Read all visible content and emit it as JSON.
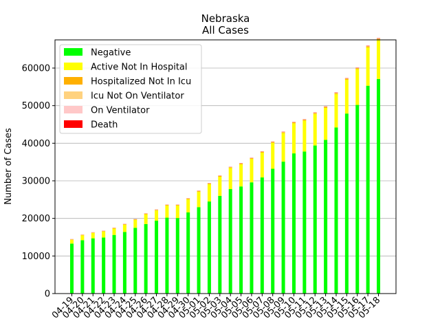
{
  "chart_data": {
    "type": "bar",
    "stacked": true,
    "title": "Nebraska",
    "subtitle": "All Cases",
    "xlabel": "",
    "ylabel": "Number of Cases",
    "ylim": [
      0,
      67500
    ],
    "yticks": [
      0,
      10000,
      20000,
      30000,
      40000,
      50000,
      60000
    ],
    "ytick_labels": [
      "0",
      "10000",
      "20000",
      "30000",
      "40000",
      "50000",
      "60000"
    ],
    "grid": "horizontal",
    "legend_position": "top-left",
    "categories": [
      "04-19",
      "04-20",
      "04-21",
      "04-22",
      "04-23",
      "04-24",
      "04-25",
      "04-26",
      "04-27",
      "04-28",
      "04-29",
      "04-30",
      "05-01",
      "05-02",
      "05-03",
      "05-04",
      "05-05",
      "05-06",
      "05-07",
      "05-08",
      "05-09",
      "05-10",
      "05-11",
      "05-12",
      "05-13",
      "05-14",
      "05-15",
      "05-16",
      "05-17",
      "05-18"
    ],
    "series": [
      {
        "name": "Negative",
        "color": "#00ff00",
        "values": [
          13300,
          14200,
          14700,
          14900,
          15600,
          16400,
          17500,
          18500,
          19400,
          20200,
          20100,
          21600,
          23000,
          24500,
          26000,
          27800,
          28500,
          29600,
          30900,
          33200,
          35100,
          37300,
          37800,
          39400,
          40900,
          44200,
          47900,
          50200,
          55300,
          57100
        ]
      },
      {
        "name": "Active Not In Hospital",
        "color": "#ffff00",
        "values": [
          1000,
          1300,
          1400,
          1600,
          1700,
          1900,
          2100,
          2600,
          2700,
          3200,
          3300,
          3500,
          4100,
          4600,
          5100,
          5600,
          5900,
          6200,
          6600,
          6900,
          7600,
          8000,
          8200,
          8400,
          8500,
          8900,
          9000,
          9500,
          10200,
          10400
        ]
      },
      {
        "name": "Hospitalized Not In Icu",
        "color": "#ffb000",
        "values": [
          120,
          120,
          120,
          130,
          140,
          150,
          150,
          160,
          170,
          180,
          180,
          190,
          200,
          200,
          210,
          210,
          210,
          220,
          230,
          230,
          230,
          240,
          250,
          250,
          260,
          260,
          270,
          270,
          280,
          290
        ]
      },
      {
        "name": "Icu Not On Ventilator",
        "color": "#ffd27f",
        "values": [
          30,
          30,
          30,
          30,
          30,
          30,
          30,
          30,
          30,
          40,
          40,
          40,
          40,
          40,
          40,
          40,
          40,
          40,
          40,
          40,
          40,
          40,
          40,
          40,
          40,
          40,
          40,
          40,
          40,
          40
        ]
      },
      {
        "name": "On Ventilator",
        "color": "#ffc8c8",
        "values": [
          30,
          30,
          30,
          30,
          30,
          30,
          30,
          30,
          30,
          30,
          30,
          30,
          30,
          30,
          30,
          30,
          30,
          30,
          30,
          30,
          30,
          30,
          30,
          30,
          30,
          30,
          30,
          30,
          30,
          30
        ]
      },
      {
        "name": "Death",
        "color": "#ff0000",
        "values": [
          20,
          20,
          20,
          30,
          30,
          30,
          30,
          30,
          30,
          30,
          30,
          30,
          40,
          40,
          40,
          40,
          50,
          50,
          50,
          50,
          60,
          60,
          60,
          60,
          70,
          70,
          70,
          70,
          80,
          80
        ]
      }
    ]
  }
}
